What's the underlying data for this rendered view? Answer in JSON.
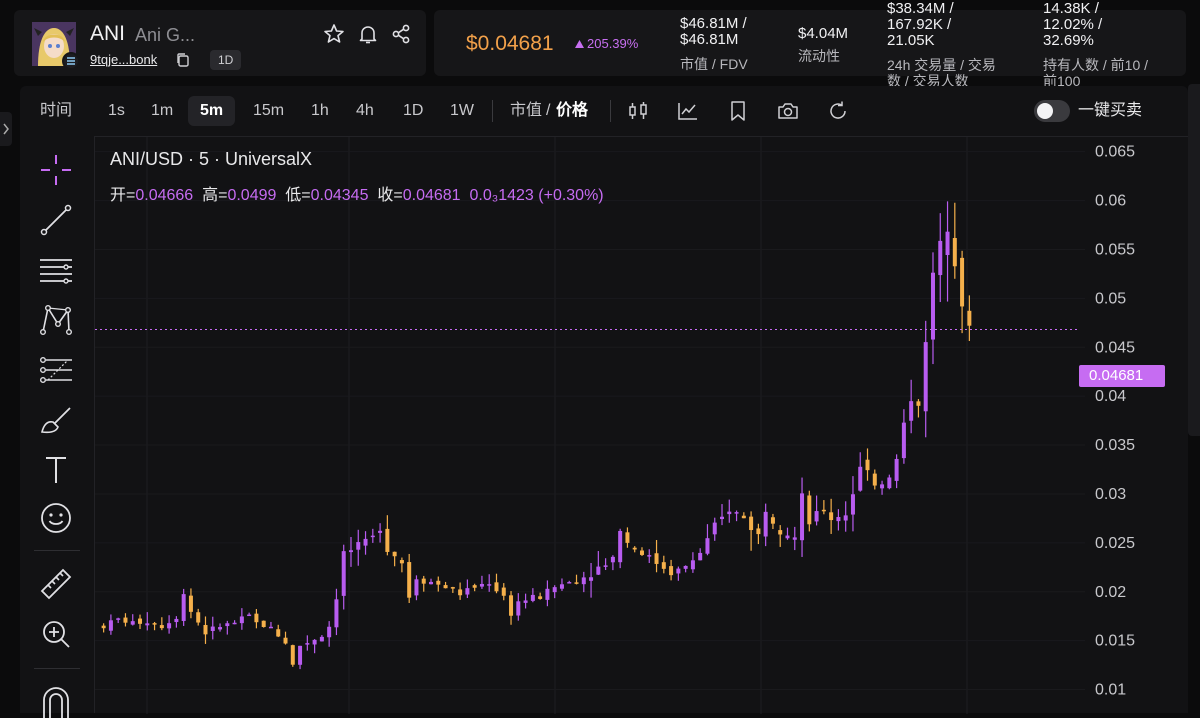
{
  "header": {
    "token_symbol": "ANI",
    "token_name": "Ani G...",
    "token_address": "9tqje...bonk",
    "timeframe_badge": "1D",
    "price": "$0.04681",
    "change": "205.39%",
    "stats": [
      {
        "value": "$46.81M /\n$46.81M",
        "label": "市值 / FDV"
      },
      {
        "value": "$4.04M",
        "label": "流动性"
      },
      {
        "value": "$38.34M /\n167.92K /\n21.05K",
        "label": "24h 交易量 / 交易\n数 / 交易人数"
      },
      {
        "value": "14.38K /\n12.02% /\n32.69%",
        "label": "持有人数 / 前10 /\n前100"
      }
    ]
  },
  "toolbar": {
    "time_label": "时间",
    "intervals": [
      "1s",
      "1m",
      "5m",
      "15m",
      "1h",
      "4h",
      "1D",
      "1W"
    ],
    "active_interval": "5m",
    "mode_market_cap": "市值",
    "mode_separator": "/",
    "mode_price": "价格",
    "one_click_label": "一键买卖"
  },
  "legend": {
    "title": "ANI/USD · 5 · UniversalX",
    "open_label": "开=",
    "open": "0.04666",
    "high_label": "高=",
    "high": "0.0499",
    "low_label": "低=",
    "low": "0.04345",
    "close_label": "收=",
    "close": "0.04681",
    "change": "0.0₃1423 (+0.30%)"
  },
  "price_tag": "0.04681",
  "colors": {
    "up": "#b85cf0",
    "down": "#f5b04b",
    "accent": "#c66cf2",
    "price": "#f2a14a"
  },
  "draw_tools": [
    "crosshair-icon",
    "trend-line-icon",
    "horizontal-lines-icon",
    "pattern-icon",
    "fib-icon",
    "brush-icon",
    "text-icon",
    "emoji-icon",
    "ruler-icon",
    "zoom-in-icon",
    "magnet-icon"
  ],
  "chart_data": {
    "type": "candlestick",
    "y_ticks": [
      "0.065",
      "0.06",
      "0.055",
      "0.05",
      "0.045",
      "0.04",
      "0.035",
      "0.03",
      "0.025",
      "0.02",
      "0.015",
      "0.01"
    ],
    "ylim": [
      0.0075,
      0.0665
    ],
    "last_price": 0.04681,
    "close_path": [
      [
        0,
        0.0165
      ],
      [
        2,
        0.0172
      ],
      [
        4,
        0.0168
      ],
      [
        6,
        0.017
      ],
      [
        8,
        0.0165
      ],
      [
        10,
        0.0175
      ],
      [
        11,
        0.0198
      ],
      [
        12,
        0.018
      ],
      [
        14,
        0.0158
      ],
      [
        16,
        0.0165
      ],
      [
        18,
        0.0168
      ],
      [
        20,
        0.0175
      ],
      [
        21,
        0.0168
      ],
      [
        23,
        0.0163
      ],
      [
        25,
        0.0148
      ],
      [
        26,
        0.0125
      ],
      [
        27,
        0.0145
      ],
      [
        30,
        0.0155
      ],
      [
        31,
        0.0165
      ],
      [
        32,
        0.0195
      ],
      [
        33,
        0.024
      ],
      [
        35,
        0.0245
      ],
      [
        37,
        0.0255
      ],
      [
        38,
        0.0268
      ],
      [
        39,
        0.0245
      ],
      [
        41,
        0.023
      ],
      [
        42,
        0.0195
      ],
      [
        43,
        0.0215
      ],
      [
        45,
        0.021
      ],
      [
        47,
        0.0205
      ],
      [
        49,
        0.0198
      ],
      [
        51,
        0.0205
      ],
      [
        53,
        0.021
      ],
      [
        55,
        0.0195
      ],
      [
        56,
        0.0178
      ],
      [
        57,
        0.019
      ],
      [
        60,
        0.0195
      ],
      [
        62,
        0.0205
      ],
      [
        64,
        0.021
      ],
      [
        66,
        0.0215
      ],
      [
        68,
        0.0225
      ],
      [
        70,
        0.0235
      ],
      [
        71,
        0.0265
      ],
      [
        72,
        0.025
      ],
      [
        75,
        0.0235
      ],
      [
        78,
        0.022
      ],
      [
        80,
        0.0225
      ],
      [
        82,
        0.024
      ],
      [
        84,
        0.0265
      ],
      [
        86,
        0.0285
      ],
      [
        88,
        0.0275
      ],
      [
        90,
        0.0258
      ],
      [
        91,
        0.0285
      ],
      [
        93,
        0.0265
      ],
      [
        95,
        0.0255
      ],
      [
        96,
        0.0295
      ],
      [
        97,
        0.027
      ],
      [
        99,
        0.0285
      ],
      [
        100,
        0.0275
      ],
      [
        102,
        0.028
      ],
      [
        104,
        0.0325
      ],
      [
        105,
        0.033
      ],
      [
        106,
        0.031
      ],
      [
        108,
        0.0315
      ],
      [
        109,
        0.0335
      ],
      [
        110,
        0.037
      ],
      [
        111,
        0.04
      ],
      [
        112,
        0.0395
      ],
      [
        113,
        0.045
      ],
      [
        114,
        0.0525
      ],
      [
        115,
        0.055
      ],
      [
        116,
        0.058
      ],
      [
        117,
        0.0545
      ],
      [
        118,
        0.05
      ],
      [
        119,
        0.0468
      ]
    ],
    "total_candles": 120
  }
}
